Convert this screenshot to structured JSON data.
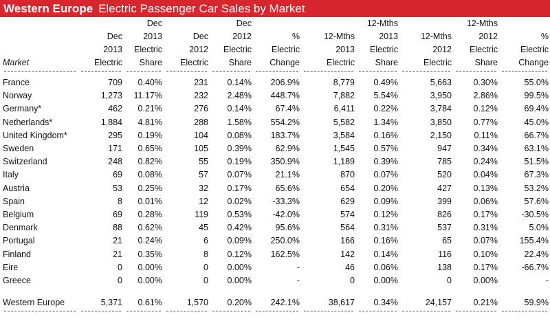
{
  "title": {
    "bold": "Western Europe",
    "rest": "Electric Passenger Car Sales by Market"
  },
  "header_rows": [
    [
      "",
      "",
      "Dec",
      "",
      "Dec",
      "",
      "",
      "12-Mths",
      "",
      "12-Mths",
      ""
    ],
    [
      "",
      "Dec",
      "2013",
      "Dec",
      "2012",
      "%",
      "12-Mths",
      "2013",
      "12-Mths",
      "2012",
      "%"
    ],
    [
      "",
      "2013",
      "Electric",
      "2012",
      "Electric",
      "Electric",
      "2013",
      "Electric",
      "2012",
      "Electric",
      "Electric"
    ],
    [
      "Market",
      "Electric",
      "Share",
      "Electric",
      "Share",
      "Change",
      "Electric",
      "Share",
      "Electric",
      "Share",
      "Change"
    ]
  ],
  "chart_data": {
    "type": "table",
    "columns": [
      "Market",
      "Dec 2013 Electric",
      "Dec 2013 Electric Share",
      "Dec 2012 Electric",
      "Dec 2012 Electric Share",
      "% Electric Change",
      "12-Mths 2013 Electric",
      "12-Mths 2013 Electric Share",
      "12-Mths 2012 Electric",
      "12-Mths 2012 Electric Share",
      "% Electric Change"
    ],
    "rows": [
      [
        "France",
        "709",
        "0.40%",
        "231",
        "0.14%",
        "206.9%",
        "8,779",
        "0.49%",
        "5,663",
        "0.30%",
        "55.0%"
      ],
      [
        "Norway",
        "1,273",
        "11.17%",
        "232",
        "2.48%",
        "448.7%",
        "7,882",
        "5.54%",
        "3,950",
        "2.86%",
        "99.5%"
      ],
      [
        "Germany*",
        "462",
        "0.21%",
        "276",
        "0.14%",
        "67.4%",
        "6,411",
        "0.22%",
        "3,784",
        "0.12%",
        "69.4%"
      ],
      [
        "Netherlands*",
        "1,884",
        "4.81%",
        "288",
        "1.58%",
        "554.2%",
        "5,582",
        "1.34%",
        "3,850",
        "0.77%",
        "45.0%"
      ],
      [
        "United Kingdom*",
        "295",
        "0.19%",
        "104",
        "0.08%",
        "183.7%",
        "3,584",
        "0.16%",
        "2,150",
        "0.11%",
        "66.7%"
      ],
      [
        "Sweden",
        "171",
        "0.65%",
        "105",
        "0.39%",
        "62.9%",
        "1,545",
        "0.57%",
        "947",
        "0.34%",
        "63.1%"
      ],
      [
        "Switzerland",
        "248",
        "0.82%",
        "55",
        "0.19%",
        "350.9%",
        "1,189",
        "0.39%",
        "785",
        "0.24%",
        "51.5%"
      ],
      [
        "Italy",
        "69",
        "0.08%",
        "57",
        "0.07%",
        "21.1%",
        "870",
        "0.07%",
        "520",
        "0.04%",
        "67.3%"
      ],
      [
        "Austria",
        "53",
        "0.25%",
        "32",
        "0.17%",
        "65.6%",
        "654",
        "0.20%",
        "427",
        "0.13%",
        "53.2%"
      ],
      [
        "Spain",
        "8",
        "0.01%",
        "12",
        "0.02%",
        "-33.3%",
        "629",
        "0.09%",
        "399",
        "0.06%",
        "57.6%"
      ],
      [
        "Belgium",
        "69",
        "0.28%",
        "119",
        "0.53%",
        "-42.0%",
        "574",
        "0.12%",
        "826",
        "0.17%",
        "-30.5%"
      ],
      [
        "Denmark",
        "88",
        "0.62%",
        "45",
        "0.42%",
        "95.6%",
        "564",
        "0.31%",
        "537",
        "0.31%",
        "5.0%"
      ],
      [
        "Portugal",
        "21",
        "0.24%",
        "6",
        "0.09%",
        "250.0%",
        "166",
        "0.16%",
        "65",
        "0.07%",
        "155.4%"
      ],
      [
        "Finland",
        "21",
        "0.35%",
        "8",
        "0.12%",
        "162.5%",
        "142",
        "0.14%",
        "116",
        "0.10%",
        "22.4%"
      ],
      [
        "Eire",
        "0",
        "0.00%",
        "0",
        "0.00%",
        "-",
        "46",
        "0.06%",
        "138",
        "0.17%",
        "-66.7%"
      ],
      [
        "Greece",
        "0",
        "0.00%",
        "0",
        "0.00%",
        "-",
        "0",
        "0.00%",
        "0",
        "0.00%",
        "-"
      ]
    ],
    "total": [
      "Western Europe",
      "5,371",
      "0.61%",
      "1,570",
      "0.20%",
      "242.1%",
      "38,617",
      "0.34%",
      "24,157",
      "0.21%",
      "59.9%"
    ]
  }
}
